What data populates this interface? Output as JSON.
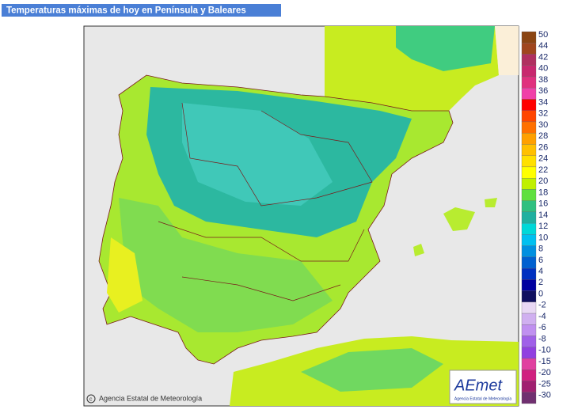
{
  "header": {
    "title": "Temperaturas máximas de hoy en Península y Baleares"
  },
  "legend": [
    {
      "label": "50",
      "color": "#8b4513"
    },
    {
      "label": "44",
      "color": "#a0461e"
    },
    {
      "label": "42",
      "color": "#b03060"
    },
    {
      "label": "40",
      "color": "#c8286e"
    },
    {
      "label": "38",
      "color": "#e0307e"
    },
    {
      "label": "36",
      "color": "#f040a8"
    },
    {
      "label": "34",
      "color": "#ff0000"
    },
    {
      "label": "32",
      "color": "#ff4500"
    },
    {
      "label": "30",
      "color": "#ff7000"
    },
    {
      "label": "28",
      "color": "#ffa000"
    },
    {
      "label": "26",
      "color": "#ffc000"
    },
    {
      "label": "24",
      "color": "#ffe000"
    },
    {
      "label": "22",
      "color": "#ffff00"
    },
    {
      "label": "20",
      "color": "#c0f000"
    },
    {
      "label": "18",
      "color": "#60e040"
    },
    {
      "label": "16",
      "color": "#30c080"
    },
    {
      "label": "14",
      "color": "#20b0a0"
    },
    {
      "label": "12",
      "color": "#00d8d8"
    },
    {
      "label": "10",
      "color": "#00c0f0"
    },
    {
      "label": "8",
      "color": "#0090e0"
    },
    {
      "label": "6",
      "color": "#0060d0"
    },
    {
      "label": "4",
      "color": "#0030c0"
    },
    {
      "label": "2",
      "color": "#0000a0"
    },
    {
      "label": "0",
      "color": "#101060"
    },
    {
      "label": "-2",
      "color": "#e8d8f4"
    },
    {
      "label": "-4",
      "color": "#d0b0f0"
    },
    {
      "label": "-6",
      "color": "#c090f0"
    },
    {
      "label": "-8",
      "color": "#a060e8"
    },
    {
      "label": "-10",
      "color": "#9040e0"
    },
    {
      "label": "-15",
      "color": "#e040a0"
    },
    {
      "label": "-20",
      "color": "#d02080"
    },
    {
      "label": "-25",
      "color": "#a02070"
    },
    {
      "label": "-30",
      "color": "#703070"
    }
  ],
  "credit": "Agencia Estatal de Meteorología",
  "logo": {
    "name": "AEmet",
    "subtitle": "Agencia Estatal de Meteorología"
  }
}
